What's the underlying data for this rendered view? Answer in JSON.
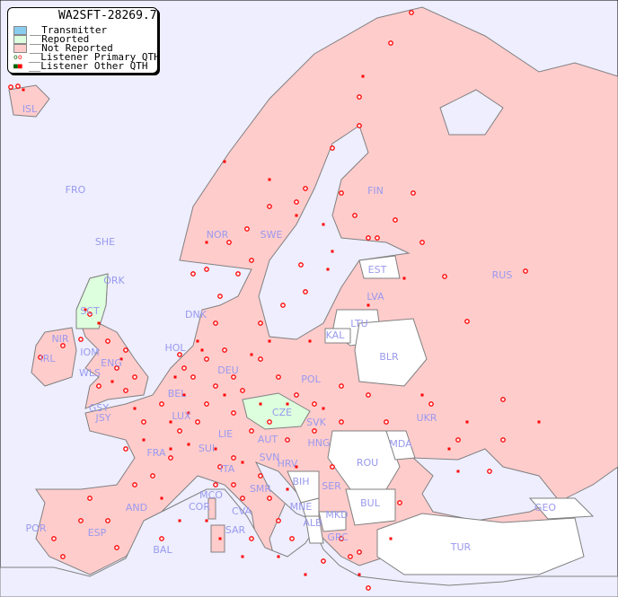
{
  "title": "WA2SFT-28269.7",
  "legend": {
    "transmitter": {
      "label": "__Transmitter",
      "color": "#88ccee"
    },
    "reported": {
      "label": "__Reported",
      "color": "#ddffdd"
    },
    "not_reported": {
      "label": "__Not Reported",
      "color": "#ffcccc"
    },
    "primary": {
      "label": "__Listener Primary QTH",
      "color": "#ff0000"
    },
    "other": {
      "label": "__Listener Other QTH",
      "color": "#ff0000"
    }
  },
  "colors": {
    "sea": "#eeeeff",
    "no_data": "#ffffff",
    "border": "#808080",
    "label": "#9999ee"
  },
  "countries": {
    "reported": [
      "SCT",
      "CZE"
    ],
    "no_data": [
      "EST",
      "LTU",
      "KAL",
      "BLR",
      "MDA",
      "ROU",
      "BUL",
      "TUR",
      "GEO",
      "BIH",
      "MNE",
      "ALB",
      "MKD"
    ]
  },
  "labels": [
    "ISL",
    "FRO",
    "SHE",
    "ORK",
    "NOR",
    "SWE",
    "FIN",
    "EST",
    "RUS",
    "LVA",
    "LTU",
    "DNK",
    "SCT",
    "NIR",
    "IRL",
    "IOM",
    "WLS",
    "ENG",
    "HOL",
    "KAL",
    "BLR",
    "DEU",
    "POL",
    "BEL",
    "GSY",
    "JSY",
    "LUX",
    "CZE",
    "SVK",
    "UKR",
    "FRA",
    "SUI",
    "LIE",
    "AUT",
    "HNG",
    "MDA",
    "SVN",
    "HRV",
    "ROU",
    "ITA",
    "BIH",
    "SMR",
    "SRB",
    "MCO",
    "COR",
    "CVA",
    "SER",
    "MNE",
    "BUL",
    "GEO",
    "AND",
    "MKD",
    "ALB",
    "POR",
    "ESP",
    "SAR",
    "GRC",
    "TUR",
    "BAL"
  ]
}
